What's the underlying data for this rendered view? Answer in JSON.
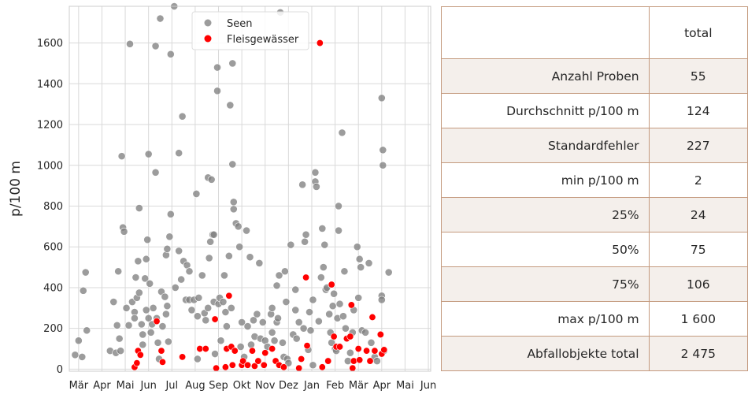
{
  "chart_data": {
    "type": "scatter",
    "ylabel": "p/100 m",
    "xlabel": "",
    "ylim": [
      -10,
      1780
    ],
    "yticks": [
      0,
      200,
      400,
      600,
      800,
      1000,
      1200,
      1400,
      1600
    ],
    "xtick_labels": [
      "Mär",
      "Apr",
      "Mai",
      "Jun",
      "Jul",
      "Aug",
      "Sep",
      "Okt",
      "Nov",
      "Dez",
      "Jan",
      "Feb",
      "Mär",
      "Apr",
      "Mai",
      "Jun"
    ],
    "x_unit": "month index (0 = Mär, one unit per month)",
    "xlim": [
      -0.4,
      15.1
    ],
    "grid": true,
    "legend_position": "top-center",
    "series": [
      {
        "name": "Seen",
        "color": "#808080",
        "points": [
          [
            -0.15,
            70
          ],
          [
            0.0,
            140
          ],
          [
            0.15,
            60
          ],
          [
            0.2,
            385
          ],
          [
            0.3,
            475
          ],
          [
            0.35,
            190
          ],
          [
            1.35,
            90
          ],
          [
            1.5,
            330
          ],
          [
            1.6,
            80
          ],
          [
            1.65,
            215
          ],
          [
            1.7,
            480
          ],
          [
            1.75,
            150
          ],
          [
            1.8,
            90
          ],
          [
            1.85,
            1045
          ],
          [
            1.9,
            695
          ],
          [
            1.95,
            675
          ],
          [
            2.05,
            300
          ],
          [
            2.15,
            215
          ],
          [
            2.2,
            1595
          ],
          [
            2.3,
            330
          ],
          [
            2.4,
            280
          ],
          [
            2.4,
            250
          ],
          [
            2.45,
            450
          ],
          [
            2.5,
            350
          ],
          [
            2.55,
            530
          ],
          [
            2.6,
            790
          ],
          [
            2.6,
            375
          ],
          [
            2.7,
            220
          ],
          [
            2.75,
            170
          ],
          [
            2.75,
            120
          ],
          [
            2.85,
            445
          ],
          [
            2.9,
            540
          ],
          [
            2.9,
            290
          ],
          [
            2.95,
            635
          ],
          [
            3.0,
            1055
          ],
          [
            3.0,
            250
          ],
          [
            3.05,
            420
          ],
          [
            3.1,
            180
          ],
          [
            3.15,
            220
          ],
          [
            3.2,
            300
          ],
          [
            3.3,
            1585
          ],
          [
            3.3,
            965
          ],
          [
            3.35,
            250
          ],
          [
            3.4,
            130
          ],
          [
            3.45,
            50
          ],
          [
            3.5,
            1720
          ],
          [
            3.55,
            380
          ],
          [
            3.6,
            210
          ],
          [
            3.7,
            355
          ],
          [
            3.75,
            560
          ],
          [
            3.75,
            270
          ],
          [
            3.8,
            590
          ],
          [
            3.8,
            310
          ],
          [
            3.85,
            135
          ],
          [
            3.9,
            650
          ],
          [
            3.95,
            1545
          ],
          [
            3.95,
            760
          ],
          [
            4.1,
            1780
          ],
          [
            4.15,
            400
          ],
          [
            4.3,
            1060
          ],
          [
            4.3,
            580
          ],
          [
            4.4,
            440
          ],
          [
            4.45,
            1240
          ],
          [
            4.5,
            530
          ],
          [
            4.6,
            340
          ],
          [
            4.65,
            510
          ],
          [
            4.75,
            340
          ],
          [
            4.75,
            480
          ],
          [
            4.85,
            290
          ],
          [
            4.95,
            340
          ],
          [
            5.05,
            860
          ],
          [
            5.1,
            260
          ],
          [
            5.1,
            50
          ],
          [
            5.15,
            350
          ],
          [
            5.3,
            460
          ],
          [
            5.4,
            275
          ],
          [
            5.45,
            240
          ],
          [
            5.55,
            940
          ],
          [
            5.55,
            300
          ],
          [
            5.6,
            545
          ],
          [
            5.65,
            625
          ],
          [
            5.7,
            930
          ],
          [
            5.75,
            660
          ],
          [
            5.8,
            660
          ],
          [
            5.8,
            330
          ],
          [
            5.85,
            75
          ],
          [
            5.95,
            1480
          ],
          [
            5.95,
            1365
          ],
          [
            6.0,
            320
          ],
          [
            6.05,
            350
          ],
          [
            6.1,
            140
          ],
          [
            6.2,
            330
          ],
          [
            6.25,
            460
          ],
          [
            6.3,
            280
          ],
          [
            6.35,
            210
          ],
          [
            6.45,
            555
          ],
          [
            6.5,
            1295
          ],
          [
            6.55,
            300
          ],
          [
            6.6,
            1500
          ],
          [
            6.6,
            1005
          ],
          [
            6.65,
            820
          ],
          [
            6.65,
            785
          ],
          [
            6.75,
            715
          ],
          [
            6.85,
            700
          ],
          [
            6.9,
            600
          ],
          [
            6.95,
            110
          ],
          [
            7.0,
            230
          ],
          [
            7.1,
            60
          ],
          [
            7.2,
            680
          ],
          [
            7.25,
            210
          ],
          [
            7.35,
            550
          ],
          [
            7.4,
            120
          ],
          [
            7.5,
            240
          ],
          [
            7.55,
            160
          ],
          [
            7.65,
            270
          ],
          [
            7.7,
            40
          ],
          [
            7.75,
            520
          ],
          [
            7.8,
            150
          ],
          [
            7.9,
            230
          ],
          [
            8.0,
            140
          ],
          [
            8.1,
            110
          ],
          [
            8.25,
            270
          ],
          [
            8.3,
            180
          ],
          [
            8.3,
            300
          ],
          [
            8.4,
            140
          ],
          [
            8.5,
            410
          ],
          [
            8.5,
            230
          ],
          [
            8.55,
            250
          ],
          [
            8.6,
            460
          ],
          [
            8.65,
            1750
          ],
          [
            8.75,
            130
          ],
          [
            8.8,
            60
          ],
          [
            8.85,
            480
          ],
          [
            8.9,
            330
          ],
          [
            8.95,
            50
          ],
          [
            9.0,
            30
          ],
          [
            9.1,
            610
          ],
          [
            9.2,
            170
          ],
          [
            9.3,
            390
          ],
          [
            9.3,
            290
          ],
          [
            9.35,
            150
          ],
          [
            9.45,
            230
          ],
          [
            9.6,
            905
          ],
          [
            9.65,
            200
          ],
          [
            9.7,
            625
          ],
          [
            9.75,
            660
          ],
          [
            9.85,
            95
          ],
          [
            9.9,
            280
          ],
          [
            9.95,
            190
          ],
          [
            10.05,
            340
          ],
          [
            10.05,
            20
          ],
          [
            10.15,
            920
          ],
          [
            10.15,
            965
          ],
          [
            10.2,
            895
          ],
          [
            10.3,
            235
          ],
          [
            10.4,
            450
          ],
          [
            10.45,
            690
          ],
          [
            10.5,
            500
          ],
          [
            10.55,
            610
          ],
          [
            10.6,
            390
          ],
          [
            10.65,
            400
          ],
          [
            10.7,
            40
          ],
          [
            10.75,
            270
          ],
          [
            10.8,
            180
          ],
          [
            10.85,
            130
          ],
          [
            10.9,
            310
          ],
          [
            10.95,
            370
          ],
          [
            11.0,
            100
          ],
          [
            11.05,
            90
          ],
          [
            11.1,
            250
          ],
          [
            11.15,
            800
          ],
          [
            11.15,
            680
          ],
          [
            11.2,
            320
          ],
          [
            11.3,
            1160
          ],
          [
            11.35,
            260
          ],
          [
            11.4,
            480
          ],
          [
            11.45,
            200
          ],
          [
            11.55,
            40
          ],
          [
            11.65,
            80
          ],
          [
            11.75,
            180
          ],
          [
            11.8,
            290
          ],
          [
            11.95,
            600
          ],
          [
            12.0,
            350
          ],
          [
            12.05,
            540
          ],
          [
            12.1,
            500
          ],
          [
            12.15,
            190
          ],
          [
            12.3,
            180
          ],
          [
            12.45,
            520
          ],
          [
            12.55,
            130
          ],
          [
            12.7,
            60
          ],
          [
            12.8,
            40
          ],
          [
            12.95,
            170
          ],
          [
            13.0,
            1330
          ],
          [
            13.05,
            1075
          ],
          [
            13.05,
            1000
          ],
          [
            13.0,
            360
          ],
          [
            13.0,
            340
          ],
          [
            13.1,
            90
          ],
          [
            13.3,
            475
          ]
        ]
      },
      {
        "name": "Fleisgewässer",
        "color": "#ff0000",
        "points": [
          [
            2.4,
            10
          ],
          [
            2.5,
            30
          ],
          [
            2.55,
            90
          ],
          [
            2.65,
            70
          ],
          [
            3.35,
            235
          ],
          [
            3.55,
            90
          ],
          [
            3.6,
            35
          ],
          [
            4.45,
            60
          ],
          [
            5.2,
            100
          ],
          [
            5.45,
            100
          ],
          [
            5.85,
            245
          ],
          [
            5.9,
            5
          ],
          [
            6.3,
            10
          ],
          [
            6.35,
            100
          ],
          [
            6.45,
            360
          ],
          [
            6.55,
            110
          ],
          [
            6.6,
            20
          ],
          [
            6.7,
            90
          ],
          [
            7.0,
            20
          ],
          [
            7.05,
            40
          ],
          [
            7.25,
            20
          ],
          [
            7.45,
            90
          ],
          [
            7.55,
            15
          ],
          [
            7.7,
            40
          ],
          [
            7.95,
            20
          ],
          [
            8.0,
            80
          ],
          [
            8.3,
            100
          ],
          [
            8.45,
            40
          ],
          [
            8.6,
            20
          ],
          [
            8.8,
            10
          ],
          [
            9.45,
            5
          ],
          [
            9.55,
            50
          ],
          [
            9.75,
            450
          ],
          [
            9.8,
            115
          ],
          [
            10.35,
            1600
          ],
          [
            10.45,
            10
          ],
          [
            10.7,
            40
          ],
          [
            10.85,
            415
          ],
          [
            10.95,
            160
          ],
          [
            11.05,
            110
          ],
          [
            11.2,
            110
          ],
          [
            11.5,
            150
          ],
          [
            11.65,
            160
          ],
          [
            11.7,
            315
          ],
          [
            11.75,
            5
          ],
          [
            11.8,
            40
          ],
          [
            12.0,
            100
          ],
          [
            12.05,
            45
          ],
          [
            12.35,
            90
          ],
          [
            12.5,
            40
          ],
          [
            12.6,
            255
          ],
          [
            12.7,
            90
          ],
          [
            12.95,
            170
          ],
          [
            13.0,
            75
          ],
          [
            13.1,
            95
          ]
        ]
      }
    ]
  },
  "table": {
    "header": [
      "",
      "total"
    ],
    "rows": [
      {
        "label": "Anzahl Proben",
        "value": "55"
      },
      {
        "label": "Durchschnitt p/100 m",
        "value": "124"
      },
      {
        "label": "Standardfehler",
        "value": "227"
      },
      {
        "label": "min p/100 m",
        "value": "2"
      },
      {
        "label": "25%",
        "value": "24"
      },
      {
        "label": "50%",
        "value": "75"
      },
      {
        "label": "75%",
        "value": "106"
      },
      {
        "label": "max p/100 m",
        "value": "1 600"
      },
      {
        "label": "Abfallobjekte total",
        "value": "2 475"
      }
    ]
  }
}
